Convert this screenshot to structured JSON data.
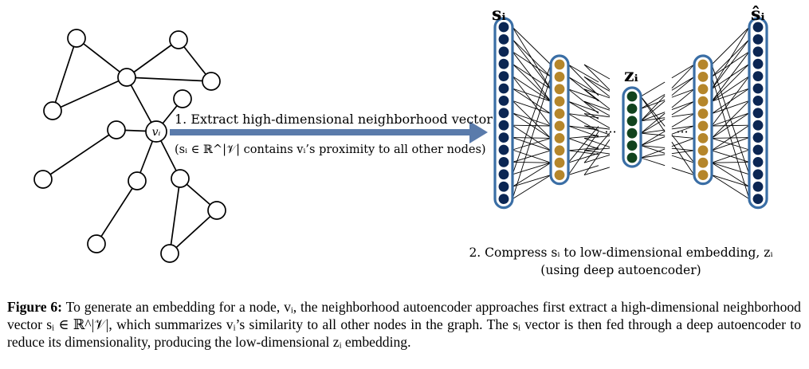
{
  "diagram": {
    "arrow_label_line1": "1. Extract high-dimensional neighborhood vector",
    "arrow_label_line2": "(sᵢ ∈ ℝ^|𝒱| contains vᵢ’s proximity to all other nodes)",
    "center_node_label": "vᵢ",
    "input_vector_label": "sᵢ",
    "embedding_label": "zᵢ",
    "output_vector_label": "ŝᵢ",
    "ellipsis_left": "···",
    "ellipsis_right": "···",
    "compress_line1": "2. Compress sᵢ to low-dimensional embedding, zᵢ",
    "compress_line2": "(using deep autoencoder)",
    "colors": {
      "outer_layer_node": "#0b2653",
      "hidden_layer_node": "#b5862b",
      "embedding_node": "#11431e",
      "layer_frame": "#3a6ea5",
      "arrow": "#5a7bab"
    },
    "layer_node_counts": {
      "input": 15,
      "hidden1": 10,
      "embedding": 6,
      "hidden2": 10,
      "output": 15
    }
  },
  "caption": {
    "label": "Figure 6:",
    "text": "To generate an embedding for a node, vᵢ, the neighborhood autoencoder approaches first extract a high-dimensional neighborhood vector sᵢ ∈ ℝ^|𝒱|, which summarizes vᵢ’s similarity to all other nodes in the graph. The sᵢ vector is then fed through a deep autoencoder to reduce its dimensionality, producing the low-dimensional zᵢ embedding."
  }
}
